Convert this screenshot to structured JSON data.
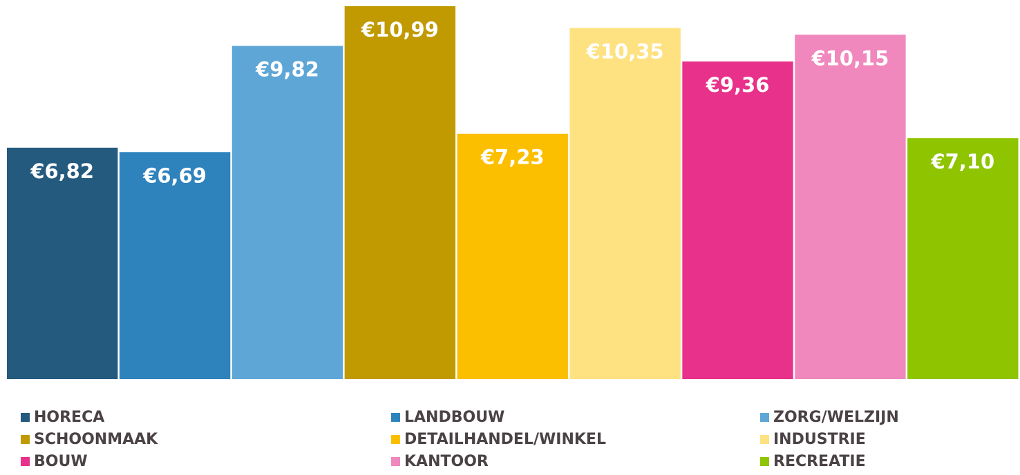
{
  "chart_data": {
    "type": "bar",
    "categories": [
      "HORECA",
      "LANDBOUW",
      "ZORG/WELZIJN",
      "SCHOONMAAK",
      "DETAILHANDEL/WINKEL",
      "INDUSTRIE",
      "BOUW",
      "KANTOOR",
      "RECREATIE"
    ],
    "values": [
      6.82,
      6.69,
      9.82,
      10.99,
      7.23,
      10.35,
      9.36,
      10.15,
      7.1
    ],
    "value_labels": [
      "€6,82",
      "€6,69",
      "€9,82",
      "€10,99",
      "€7,23",
      "€10,35",
      "€9,36",
      "€10,15",
      "€7,10"
    ],
    "colors": [
      "#245a7e",
      "#2e83bd",
      "#5ea6d6",
      "#c09a00",
      "#fcbf00",
      "#fee282",
      "#e8318a",
      "#f088bd",
      "#8ec400"
    ]
  }
}
